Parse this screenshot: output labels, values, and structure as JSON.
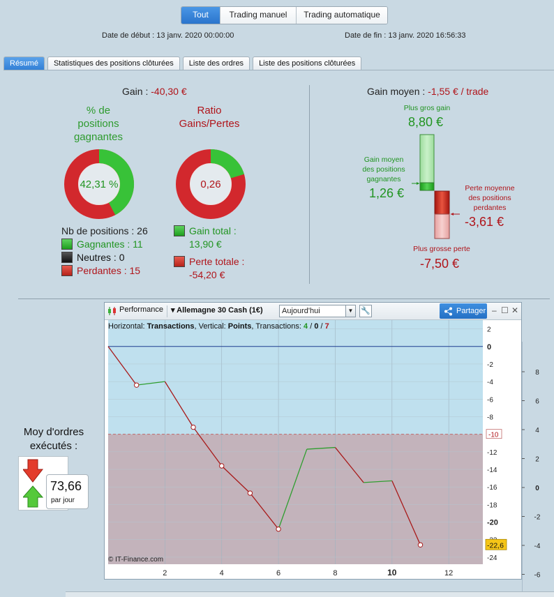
{
  "mode_buttons": {
    "tout": "Tout",
    "manuel": "Trading manuel",
    "auto": "Trading automatique"
  },
  "dates": {
    "start": "Date de début :  13 janv. 2020 00:00:00",
    "end": "Date de fin :  13 janv. 2020 16:56:33"
  },
  "tabs": [
    "Résumé",
    "Statistiques des positions clôturées",
    "Liste des ordres",
    "Liste des positions clôturées"
  ],
  "summary": {
    "gain_label": "Gain : ",
    "gain_value": "-40,30 €",
    "pct_title": "% de positions gagnantes",
    "pct_value": "42,31 %",
    "pct_fraction": 0.4231,
    "ratio_title": "Ratio Gains/Pertes",
    "ratio_value": "0,26",
    "ratio_fraction": 0.2042,
    "nb_positions": "Nb de positions : 26",
    "gagnantes": "Gagnantes : 11",
    "neutres": "Neutres : 0",
    "perdantes": "Perdantes : 15",
    "gain_total_label": "Gain total :",
    "gain_total_value": "13,90 €",
    "perte_totale_label": "Perte totale :",
    "perte_totale_value": "-54,20 €"
  },
  "gain_moyen": {
    "label": "Gain moyen : ",
    "value": "-1,55 € / trade",
    "plus_gros_gain_label": "Plus gros gain",
    "plus_gros_gain_value": "8,80 €",
    "gain_moyen_pos_label": [
      "Gain moyen",
      "des positions",
      "gagnantes"
    ],
    "gain_moyen_pos_value": "1,26 €",
    "perte_moyenne_label": [
      "Perte moyenne",
      "des positions",
      "perdantes"
    ],
    "perte_moyenne_value": "-3,61 €",
    "plus_grosse_perte_label": "Plus grosse perte",
    "plus_grosse_perte_value": "-7,50 €"
  },
  "moy_ordres": {
    "title": "Moy d'ordres exécutés :",
    "value": "73,66",
    "unit": "par jour"
  },
  "chart_toolbar": {
    "performance": "Performance",
    "instrument": "Allemagne 30 Cash (1€)",
    "period": "Aujourd'hui",
    "share": "Partager"
  },
  "chart_data": {
    "type": "line",
    "info_prefix": "Horizontal: ",
    "info_h": "Transactions",
    "info_mid": ", Vertical: ",
    "info_v": "Points",
    "info_tr": ", Transactions: ",
    "info_counts": [
      "4",
      "0",
      "7"
    ],
    "copyright": "© IT-Finance.com",
    "x": [
      0,
      1,
      2,
      3,
      4,
      5,
      6,
      7,
      8,
      9,
      10,
      11
    ],
    "y": [
      0,
      -4.4,
      -4,
      -9.2,
      -13.6,
      -16.7,
      -20.8,
      -11.7,
      -11.5,
      -15.5,
      -15.3,
      -22.6
    ],
    "marked_points": [
      1,
      3,
      4,
      5,
      6,
      11
    ],
    "xlim": [
      0,
      13.2
    ],
    "ylim": [
      -24.8,
      3
    ],
    "x_ticks": [
      "2",
      "4",
      "6",
      "8",
      "10",
      "12"
    ],
    "y_ticks": [
      "2",
      "0",
      "-2",
      "-4",
      "-6",
      "-8",
      "-10",
      "-12",
      "-14",
      "-16",
      "-18",
      "-20",
      "-22",
      "-24"
    ],
    "threshold": -10,
    "threshold_label": "-10",
    "last_label": "-22,6",
    "outer_axis_ticks": [
      "8",
      "6",
      "4",
      "2",
      "0",
      "-2",
      "-4",
      "-6"
    ],
    "colors": {
      "up": "#2f9e2f",
      "down": "#a81a1a",
      "top_bg": "#bfe0ee",
      "bottom_bg": "#c3b3bb"
    }
  }
}
